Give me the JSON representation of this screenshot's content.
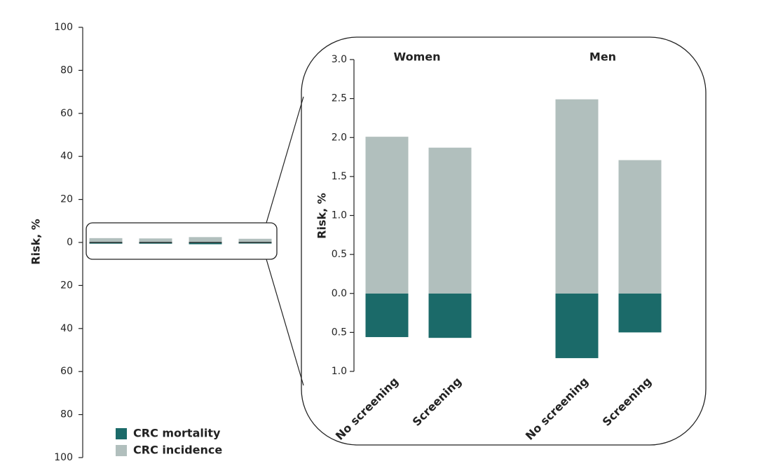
{
  "chart_data": {
    "type": "bar",
    "y_label": "Risk, %",
    "ylim": [
      -100,
      100
    ],
    "yticks": [
      100,
      80,
      60,
      40,
      20,
      0,
      {
        "value": -20,
        "label": "20"
      },
      {
        "value": -40,
        "label": "40"
      },
      {
        "value": -60,
        "label": "60"
      },
      {
        "value": -80,
        "label": "80"
      },
      {
        "value": -100,
        "label": "100"
      }
    ],
    "groups": [
      "Women",
      "Men"
    ],
    "categories": [
      "No screening",
      "Screening",
      "No screening",
      "Screening"
    ],
    "series": [
      {
        "name": "CRC mortality",
        "color": "#1b6a69",
        "values": [
          -0.56,
          -0.57,
          -0.83,
          -0.5
        ]
      },
      {
        "name": "CRC incidence",
        "color": "#b1bfbd",
        "values": [
          2.01,
          1.87,
          2.49,
          1.71
        ]
      }
    ],
    "inset": {
      "y_label": "Risk, %",
      "ylim": [
        -1,
        3
      ],
      "yticks": [
        {
          "value": 3,
          "label": "3.0"
        },
        2.5,
        {
          "value": 2,
          "label": "2.0"
        },
        1.5,
        {
          "value": 1,
          "label": "1.0"
        },
        0.5,
        {
          "value": 0,
          "label": "0.0"
        },
        {
          "value": -0.5,
          "label": "0.5"
        },
        {
          "value": -1,
          "label": "1.0"
        }
      ]
    }
  }
}
